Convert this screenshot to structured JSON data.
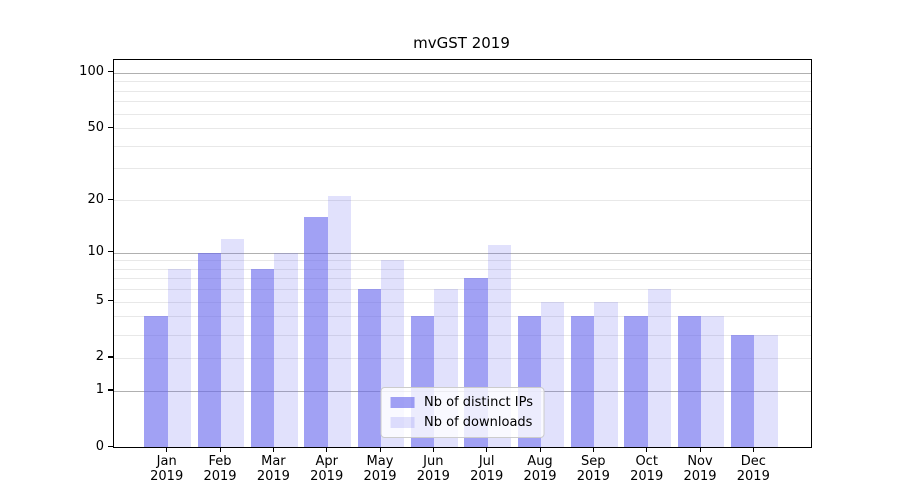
{
  "title": "mvGST 2019",
  "chart_data": {
    "type": "bar",
    "title": "mvGST 2019",
    "yscale": "log1p",
    "categories": [
      "Jan",
      "Feb",
      "Mar",
      "Apr",
      "May",
      "Jun",
      "Jul",
      "Aug",
      "Sep",
      "Oct",
      "Nov",
      "Dec"
    ],
    "category_year": "2019",
    "series": [
      {
        "name": "Nb of distinct IPs",
        "color": "rgba(103,103,238,0.62)",
        "values": [
          4,
          10,
          8,
          16,
          6,
          4,
          7,
          4,
          4,
          4,
          4,
          3
        ]
      },
      {
        "name": "Nb of downloads",
        "color": "rgba(103,103,238,0.20)",
        "values": [
          8,
          12,
          10,
          21,
          9,
          6,
          11,
          5,
          5,
          6,
          4,
          3
        ]
      }
    ],
    "yticks": [
      0,
      1,
      2,
      5,
      10,
      20,
      50,
      100
    ],
    "major_gridlines": [
      1,
      10,
      100
    ],
    "minor_gridlines": [
      2,
      3,
      4,
      5,
      6,
      7,
      8,
      9,
      20,
      30,
      40,
      50,
      60,
      70,
      80,
      90
    ],
    "ylim": [
      0,
      116
    ],
    "grid": "on",
    "legend_position": "lower center",
    "xlabel": "",
    "ylabel": ""
  },
  "colors": {
    "major_grid": "#b0b0b0",
    "minor_grid": "#e8e8e8",
    "spine": "#000000",
    "background": "#ffffff"
  }
}
